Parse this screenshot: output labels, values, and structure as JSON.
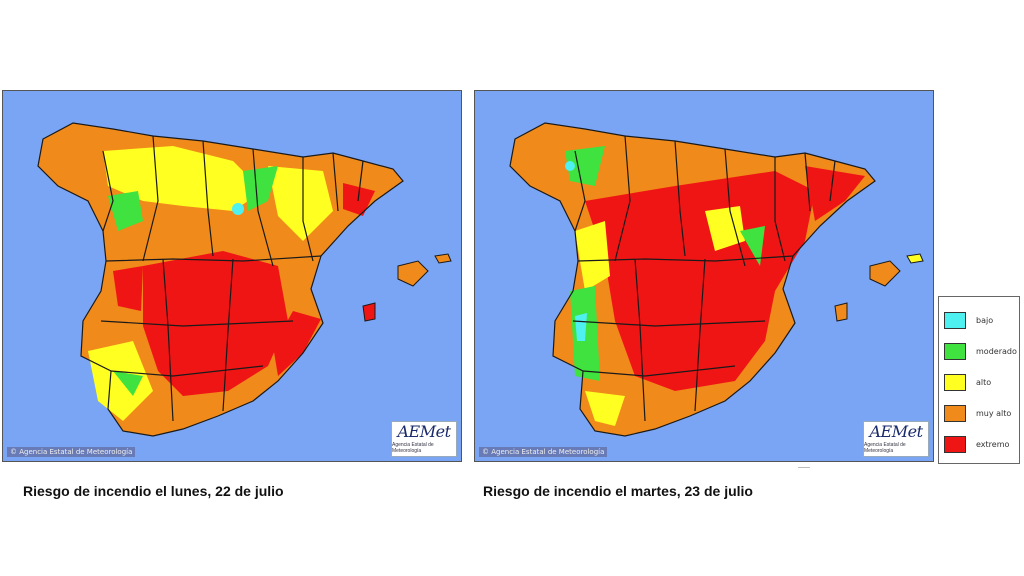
{
  "maps": {
    "left": {
      "copyright": "© Agencia Estatal de Meteorología",
      "logo": "AEMet",
      "logo_subtitle": "Agencia Estatal de Meteorología",
      "caption": "Riesgo de incendio el lunes, 22 de julio"
    },
    "right": {
      "copyright": "© Agencia Estatal de Meteorología",
      "logo": "AEMet",
      "logo_subtitle": "Agencia Estatal de Meteorología",
      "caption": "Riesgo de incendio el martes, 23 de julio"
    }
  },
  "legend": {
    "items": [
      {
        "label": "bajo",
        "color": "#4ef0f0"
      },
      {
        "label": "moderado",
        "color": "#3fe23f"
      },
      {
        "label": "alto",
        "color": "#ffff22"
      },
      {
        "label": "muy alto",
        "color": "#f08a1a"
      },
      {
        "label": "extremo",
        "color": "#f01515"
      }
    ]
  },
  "colors": {
    "sea": "#7aa5f5",
    "province_border": "#1a1a1a"
  }
}
